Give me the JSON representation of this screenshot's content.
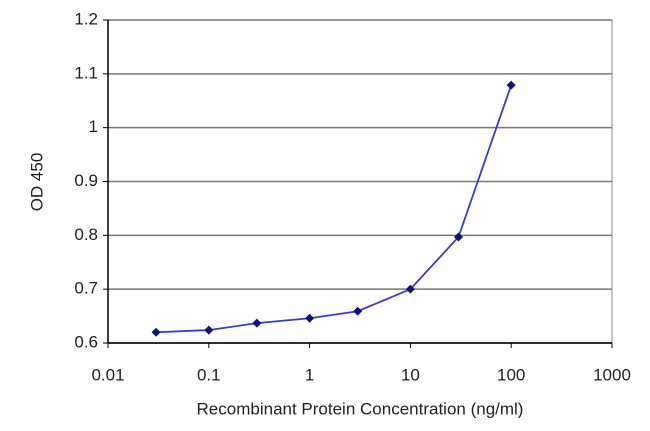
{
  "chart_data": {
    "type": "line",
    "x_label": "Recombinant Protein Concentration (ng/ml)",
    "y_label": "OD 450",
    "x": [
      0.03,
      0.1,
      0.3,
      1,
      3,
      10,
      30,
      100
    ],
    "values": [
      0.62,
      0.624,
      0.637,
      0.646,
      0.659,
      0.7,
      0.797,
      1.079
    ],
    "color": "#3b3bc8",
    "marker_color": "#10107a",
    "xscale": "log",
    "xlim": [
      0.01,
      1000
    ],
    "xticks": [
      0.01,
      0.1,
      1,
      10,
      100,
      1000
    ],
    "ylim": [
      0.6,
      1.2
    ],
    "yticks": [
      0.6,
      0.7,
      0.8,
      0.9,
      1,
      1.1,
      1.2
    ],
    "grid": true
  }
}
